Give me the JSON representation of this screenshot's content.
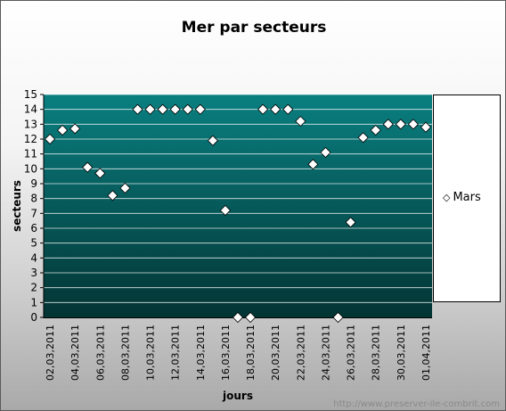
{
  "chart_data": {
    "type": "scatter",
    "title": "Mer par secteurs",
    "xlabel": "jours",
    "ylabel": "secteurs",
    "ylim": [
      0,
      15
    ],
    "yticks": [
      "0",
      "1",
      "2",
      "3",
      "4",
      "5",
      "6",
      "7",
      "8",
      "9",
      "10",
      "11",
      "12",
      "13",
      "14",
      "15"
    ],
    "x_tick_labels": [
      "02,03,2011",
      "04,03,2011",
      "06,03,2011",
      "08,03,2011",
      "10,03,2011",
      "12,03,2011",
      "14,03,2011",
      "16,03,2011",
      "18,03,2011",
      "20,03,2011",
      "22,03,2011",
      "24,03,2011",
      "26,03,2011",
      "28,03,2011",
      "30,03,2011",
      "01,04,2011"
    ],
    "categories": [
      "02,03,2011",
      "03,03,2011",
      "04,03,2011",
      "05,03,2011",
      "06,03,2011",
      "07,03,2011",
      "08,03,2011",
      "09,03,2011",
      "10,03,2011",
      "11,03,2011",
      "12,03,2011",
      "13,03,2011",
      "14,03,2011",
      "15,03,2011",
      "16,03,2011",
      "17,03,2011",
      "18,03,2011",
      "19,03,2011",
      "20,03,2011",
      "21,03,2011",
      "22,03,2011",
      "23,03,2011",
      "24,03,2011",
      "25,03,2011",
      "26,03,2011",
      "27,03,2011",
      "28,03,2011",
      "29,03,2011",
      "30,03,2011",
      "31,03,2011",
      "01,04,2011"
    ],
    "series": [
      {
        "name": "Mars",
        "marker": "diamond",
        "values": [
          12,
          12.6,
          12.7,
          10.1,
          9.7,
          8.2,
          8.7,
          14,
          14,
          14,
          14,
          14,
          14,
          11.9,
          7.2,
          0,
          0,
          14,
          14,
          14,
          13.2,
          10.3,
          11.1,
          0,
          6.4,
          12.1,
          12.6,
          13,
          13,
          13,
          12.8
        ]
      }
    ],
    "grid": true,
    "legend_position": "right",
    "colors": {
      "plot_top": "#0a7f80",
      "plot_bottom": "#033434",
      "gridline": "#ffffff",
      "marker_fill": "#ffffff",
      "marker_stroke": "#000000"
    }
  },
  "watermark": "http://www.preserver-ile-combrit.com"
}
